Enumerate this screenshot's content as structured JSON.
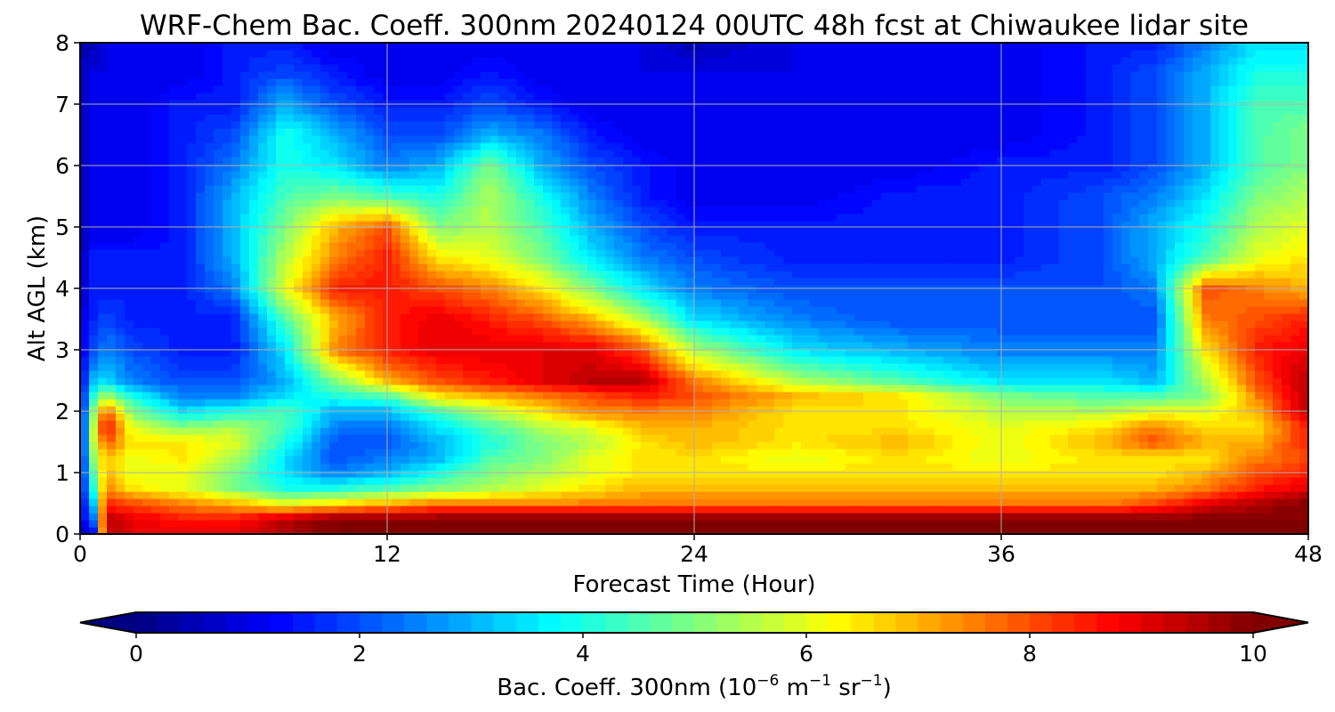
{
  "chart_data": {
    "type": "heatmap",
    "title": "WRF-Chem Bac. Coeff. 300nm  20240124 00UTC 48h fcst at Chiwaukee lidar site",
    "xlabel": "Forecast Time (Hour)",
    "ylabel": "Alt AGL (km)",
    "xlim": [
      0,
      48
    ],
    "ylim": [
      0,
      8
    ],
    "xticks": [
      "0",
      "12",
      "24",
      "36",
      "48"
    ],
    "yticks": [
      "0",
      "1",
      "2",
      "3",
      "4",
      "5",
      "6",
      "7",
      "8"
    ],
    "grid": true,
    "colormap": "jet",
    "colorbar": {
      "orientation": "horizontal",
      "position": "bottom",
      "range": [
        0,
        10
      ],
      "extend": "both",
      "ticks": [
        "0",
        "2",
        "4",
        "6",
        "8",
        "10"
      ],
      "label_text": "Bac. Coeff. 300nm  (10",
      "label_exp1": "−6",
      "label_mid": " m",
      "label_exp2": "−1",
      "label_mid2": " sr",
      "label_exp3": "−1",
      "label_end": ")"
    },
    "x_hours": [
      0,
      0.5,
      1,
      2,
      4,
      6,
      8,
      10,
      12,
      14,
      16,
      18,
      20,
      22,
      24,
      28,
      32,
      36,
      40,
      42,
      44,
      46,
      48
    ],
    "y_km": [
      0,
      0.25,
      0.5,
      0.75,
      1,
      1.25,
      1.5,
      1.75,
      2,
      2.25,
      2.5,
      3,
      3.5,
      4,
      4.5,
      5,
      5.5,
      6,
      6.5,
      7,
      7.5,
      8
    ],
    "z_rows_by_altitude": [
      [
        0.5,
        1,
        9.5,
        9,
        9,
        9,
        9.5,
        10,
        10,
        10,
        10,
        10,
        10,
        10,
        10,
        10,
        10,
        10,
        10,
        10,
        10,
        10,
        10
      ],
      [
        1,
        2,
        9.5,
        9,
        8.5,
        8.5,
        9.5,
        10,
        10,
        10,
        10,
        10,
        10,
        10,
        10,
        10,
        10,
        10,
        10,
        10,
        10,
        10,
        10
      ],
      [
        1,
        3,
        8.5,
        8,
        7.5,
        7,
        6,
        6.5,
        7,
        7.5,
        7.5,
        7.5,
        7.5,
        7.5,
        7.5,
        7.5,
        7.5,
        7.5,
        7.5,
        8,
        9,
        9.5,
        10
      ],
      [
        1,
        4,
        7.5,
        6.5,
        6,
        5,
        4,
        4,
        4.5,
        5,
        5.5,
        6,
        6.5,
        7,
        7,
        7,
        7,
        7,
        7,
        7,
        7.5,
        8.5,
        9
      ],
      [
        1,
        4.5,
        7,
        6,
        6,
        5,
        3.5,
        2.5,
        3,
        4,
        5,
        5.5,
        6,
        6.5,
        6.5,
        6.5,
        6.5,
        6.5,
        6.5,
        6.5,
        7,
        8,
        8.5
      ],
      [
        1,
        5,
        7,
        6,
        6.5,
        5.5,
        3.5,
        2,
        2.5,
        3,
        4.5,
        5,
        6,
        6.5,
        6.5,
        6,
        6.5,
        6,
        6.5,
        6.5,
        6.5,
        7.5,
        8
      ],
      [
        1,
        5.5,
        8,
        6.5,
        6.5,
        6,
        4,
        2,
        2,
        3,
        4,
        5,
        5.5,
        6.5,
        7,
        6.5,
        7,
        6,
        7,
        8,
        7,
        7,
        8.5
      ],
      [
        1,
        5.5,
        9,
        6,
        5,
        5.5,
        4.5,
        2.5,
        2.5,
        3.5,
        4.5,
        5.5,
        6,
        7,
        7,
        6.5,
        6.5,
        6,
        6.5,
        7.5,
        6.5,
        6.5,
        8.5
      ],
      [
        1,
        5,
        8,
        5,
        3.5,
        4,
        4.5,
        3,
        3,
        4.5,
        5.5,
        6.5,
        7.5,
        7.5,
        7.5,
        6.5,
        6.5,
        5.5,
        5.5,
        6,
        6,
        7,
        9.5
      ],
      [
        1,
        4,
        5.5,
        4,
        2.5,
        2.5,
        3.5,
        4,
        4.5,
        6.5,
        7,
        7.5,
        8,
        8.5,
        8,
        7,
        6.5,
        5,
        4.5,
        4.5,
        5,
        7.5,
        9.5
      ],
      [
        1,
        3,
        3.5,
        2.5,
        2,
        2,
        3,
        5,
        7,
        8,
        8.5,
        9,
        9.5,
        9.5,
        7.5,
        5.5,
        4.5,
        3.5,
        3.5,
        3,
        5.5,
        8,
        9.5
      ],
      [
        1,
        2,
        2.5,
        2,
        1.5,
        1.5,
        3.5,
        7.5,
        8.5,
        9,
        9,
        9,
        9,
        8,
        5.5,
        3.5,
        3,
        2.5,
        2.5,
        2.5,
        6.5,
        8.5,
        9
      ],
      [
        1,
        1.5,
        2,
        1.5,
        1.5,
        1.5,
        4.5,
        7,
        8.5,
        9,
        8.5,
        8,
        7,
        5.5,
        3.5,
        2.5,
        2,
        2,
        2,
        2,
        7.5,
        8,
        8.5
      ],
      [
        0.5,
        1.5,
        1.5,
        1.5,
        1.5,
        2.5,
        6,
        8.5,
        8.5,
        8,
        7.5,
        6.5,
        5,
        3.5,
        2.5,
        2,
        2,
        2,
        2,
        2.5,
        8,
        7.5,
        7
      ],
      [
        0.5,
        1.5,
        1.5,
        1.5,
        1.5,
        3,
        5.5,
        7.5,
        8.5,
        6.5,
        6,
        5,
        3.5,
        2.5,
        2,
        1.5,
        1.5,
        1.5,
        2,
        3,
        4.5,
        6,
        6.5
      ],
      [
        0.5,
        1,
        1,
        1,
        1.5,
        3,
        5,
        7,
        8,
        5,
        5.5,
        4.5,
        3,
        2,
        1.5,
        1.5,
        1.5,
        1.5,
        2,
        3,
        4,
        5.5,
        6
      ],
      [
        0.5,
        1,
        1,
        1,
        1.5,
        3,
        4.5,
        5,
        4.5,
        4,
        5.5,
        4,
        2.5,
        1.5,
        1,
        1,
        1.5,
        1.5,
        2,
        2.5,
        3.5,
        5,
        5.5
      ],
      [
        0.5,
        1,
        1,
        1,
        1.5,
        2.5,
        4,
        3.5,
        2.5,
        3,
        5,
        3,
        2,
        1.5,
        1,
        1,
        1,
        1.5,
        1.5,
        2,
        3,
        4.5,
        5
      ],
      [
        0.5,
        1,
        1,
        1,
        1.5,
        2,
        4,
        3,
        2,
        2,
        3,
        2.5,
        1.5,
        1,
        1,
        1,
        1,
        1,
        1.5,
        2,
        3,
        4.5,
        5
      ],
      [
        0.5,
        1,
        1,
        1,
        1.5,
        1.5,
        3,
        2,
        1.5,
        1.5,
        2,
        1.5,
        1,
        1,
        1,
        1,
        1,
        1,
        1.5,
        2,
        3,
        4.5,
        4.5
      ],
      [
        0.5,
        1,
        1,
        1,
        1,
        1.5,
        2,
        1.5,
        1,
        1,
        1.5,
        1,
        1,
        1,
        1,
        1,
        1,
        1,
        1.5,
        2,
        3,
        4,
        4
      ],
      [
        0.5,
        0.5,
        1,
        1,
        1,
        1.5,
        1.5,
        1,
        1,
        1,
        1,
        1,
        1,
        1,
        0.5,
        1,
        1,
        1,
        1.5,
        1.5,
        2.5,
        3.5,
        3.5
      ]
    ]
  }
}
